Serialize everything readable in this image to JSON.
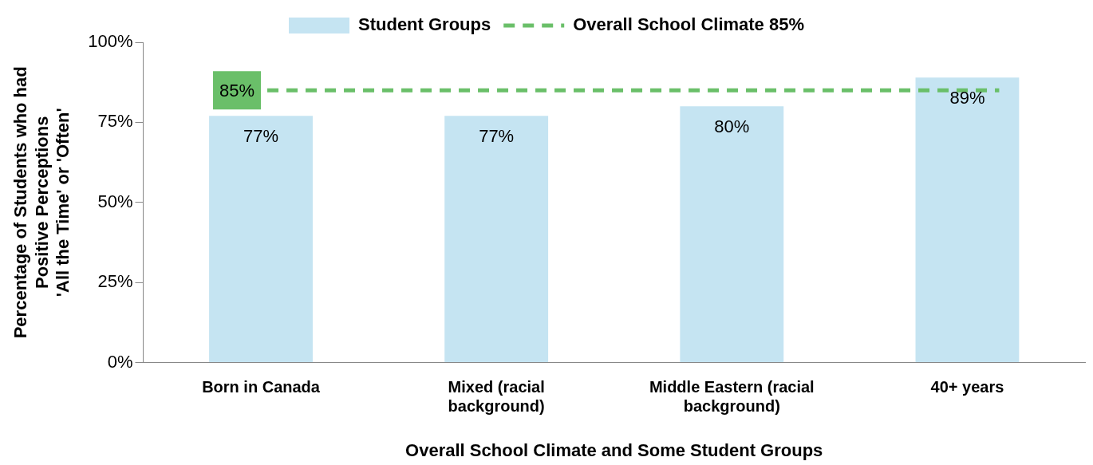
{
  "chart_data": {
    "type": "bar",
    "categories": [
      "Born in Canada",
      "Mixed (racial background)",
      "Middle Eastern (racial background)",
      "40+ years"
    ],
    "series": [
      {
        "name": "Student Groups",
        "color": "#c5e4f2",
        "values": [
          77,
          77,
          80,
          89
        ],
        "value_labels": [
          "77%",
          "77%",
          "80%",
          "89%"
        ]
      }
    ],
    "ylim": [
      0,
      100
    ],
    "yticks": [
      {
        "value": 0,
        "label": "0%"
      },
      {
        "value": 25,
        "label": "25%"
      },
      {
        "value": 50,
        "label": "50%"
      },
      {
        "value": 75,
        "label": "75%"
      },
      {
        "value": 100,
        "label": "100%"
      }
    ],
    "ylabel": "Percentage of Students who had\nPositive Perceptions\n'All the Time' or 'Often'",
    "xlabel": "Overall School Climate and Some Student Groups",
    "ref_lines": [
      {
        "axis": "y",
        "value": 85,
        "label": "Overall School Climate 85%",
        "color": "#6abf69",
        "line_style": "dashed"
      }
    ],
    "annotations": [
      {
        "text": "85%",
        "x": "Born in Canada",
        "y": 85
      }
    ],
    "legend": "top",
    "grid": false
  }
}
